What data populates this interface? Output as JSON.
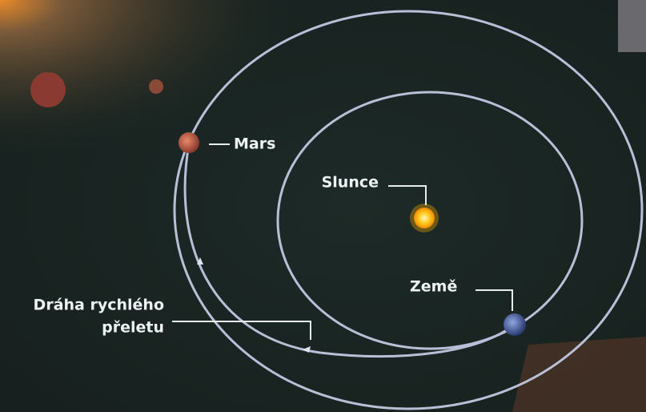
{
  "labels": {
    "mars": "Mars",
    "sun": "Slunce",
    "earth": "Země",
    "transfer": [
      "Dráha rychlého",
      "přeletu"
    ]
  }
}
